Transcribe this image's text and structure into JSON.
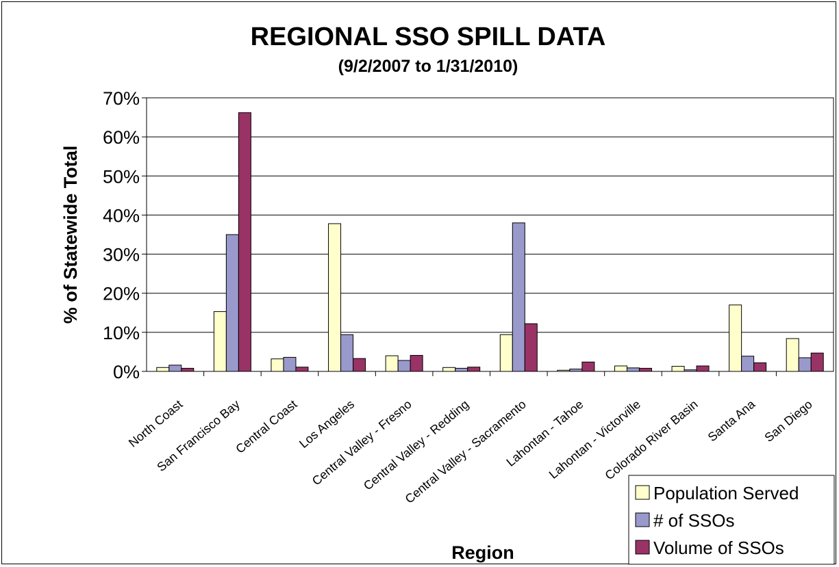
{
  "chart_data": {
    "type": "bar",
    "title": "REGIONAL SSO SPILL DATA",
    "subtitle": "(9/2/2007 to 1/31/2010)",
    "xlabel": "Region",
    "ylabel": "% of Statewide Total",
    "ylim": [
      0,
      70
    ],
    "yticks": [
      "0%",
      "10%",
      "20%",
      "30%",
      "40%",
      "50%",
      "60%",
      "70%"
    ],
    "grid": true,
    "legend_position": "bottom-right",
    "categories": [
      "North Coast",
      "San Francisco Bay",
      "Central Coast",
      "Los Angeles",
      "Central Valley - Fresno",
      "Central Valley - Redding",
      "Central Valley - Sacramento",
      "Lahontan - Tahoe",
      "Lahontan - Victorville",
      "Colorado River Basin",
      "Santa Ana",
      "San Diego"
    ],
    "series": [
      {
        "name": "Population Served",
        "color": "#FFFFCC",
        "values": [
          1.0,
          15.3,
          3.2,
          37.8,
          4.0,
          1.0,
          9.4,
          0.3,
          1.4,
          1.3,
          17.0,
          8.4
        ]
      },
      {
        "name": "# of SSOs",
        "color": "#9999CC",
        "values": [
          1.6,
          35.0,
          3.6,
          9.4,
          2.8,
          0.8,
          38.0,
          0.6,
          0.9,
          0.4,
          3.9,
          3.5
        ]
      },
      {
        "name": "Volume of SSOs",
        "color": "#993366",
        "values": [
          0.8,
          66.2,
          1.1,
          3.3,
          4.1,
          1.1,
          12.2,
          2.4,
          0.8,
          1.4,
          2.2,
          4.7
        ]
      }
    ]
  }
}
